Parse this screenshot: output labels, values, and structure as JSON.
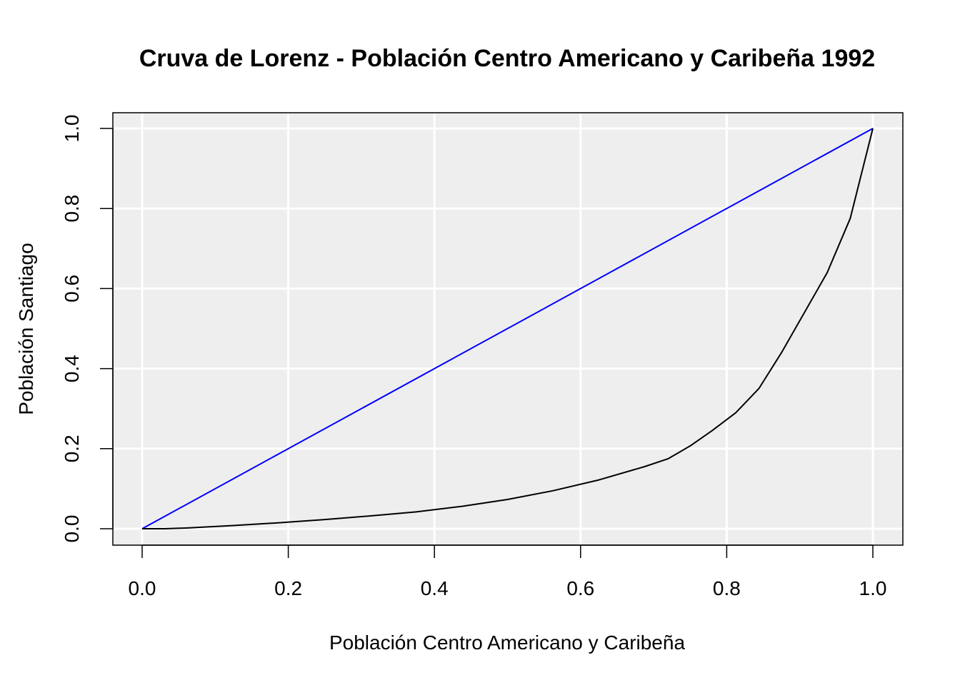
{
  "chart_data": {
    "type": "line",
    "title": "Cruva de Lorenz - Población Centro Americano y Caribeña 1992",
    "xlabel": "Población Centro Americano y Caribeña",
    "ylabel": "Población Santiago",
    "xlim": [
      0.0,
      1.0
    ],
    "ylim": [
      0.0,
      1.0
    ],
    "xticks": [
      "0.0",
      "0.2",
      "0.4",
      "0.6",
      "0.8",
      "1.0"
    ],
    "yticks": [
      "0.0",
      "0.2",
      "0.4",
      "0.6",
      "0.8",
      "1.0"
    ],
    "grid": true,
    "background": "#eeeeee",
    "series": [
      {
        "color": "#0000ff",
        "x": [
          0.0,
          1.0
        ],
        "y": [
          0.0,
          1.0
        ]
      },
      {
        "color": "#000000",
        "x": [
          0.0,
          0.031,
          0.0625,
          0.125,
          0.1875,
          0.25,
          0.3125,
          0.375,
          0.4375,
          0.5,
          0.5625,
          0.625,
          0.6875,
          0.72,
          0.75,
          0.78,
          0.8125,
          0.844,
          0.875,
          0.9375,
          0.969,
          1.0
        ],
        "y": [
          0.0,
          0.0,
          0.002,
          0.008,
          0.015,
          0.023,
          0.032,
          0.042,
          0.056,
          0.073,
          0.095,
          0.122,
          0.155,
          0.175,
          0.207,
          0.245,
          0.29,
          0.35,
          0.44,
          0.64,
          0.775,
          1.0
        ]
      }
    ]
  }
}
